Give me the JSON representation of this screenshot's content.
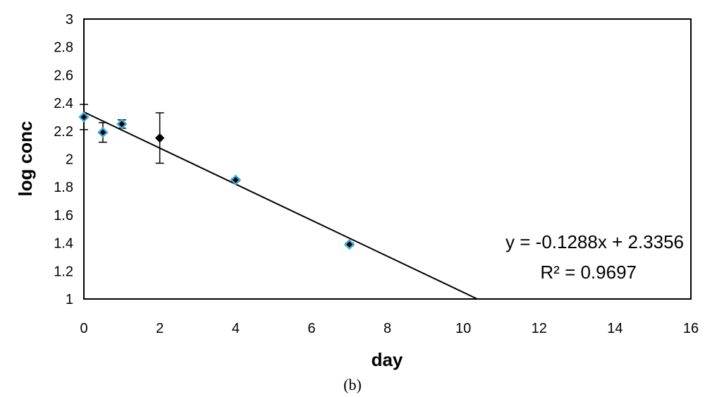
{
  "chart_data": {
    "type": "scatter",
    "xlabel": "day",
    "ylabel": "log conc",
    "xlim": [
      0,
      16
    ],
    "ylim": [
      1,
      3
    ],
    "xticks": [
      "0",
      "2",
      "4",
      "6",
      "8",
      "10",
      "12",
      "14",
      "16"
    ],
    "yticks": [
      "1",
      "1.2",
      "1.4",
      "1.6",
      "1.8",
      "2",
      "2.2",
      "2.4",
      "2.6",
      "2.8",
      "3"
    ],
    "grid": false,
    "legend": false,
    "points": [
      {
        "x": 0,
        "y": 2.3,
        "err": 0.09,
        "marker": "blue-diamond"
      },
      {
        "x": 0.5,
        "y": 2.19,
        "err": 0.07,
        "marker": "blue-diamond"
      },
      {
        "x": 1,
        "y": 2.25,
        "err": 0.03,
        "marker": "blue-diamond"
      },
      {
        "x": 2,
        "y": 2.15,
        "err": 0.18,
        "marker": "black-diamond"
      },
      {
        "x": 4,
        "y": 1.85,
        "err": 0.01,
        "marker": "blue-diamond"
      },
      {
        "x": 7,
        "y": 1.39,
        "err": 0.01,
        "marker": "blue-diamond"
      }
    ],
    "trendline": {
      "slope": -0.1288,
      "intercept": 2.3356
    },
    "equation_text": "y = -0.1288x + 2.3356",
    "r2_text": "R² = 0.9697",
    "caption": "(b)",
    "colors": {
      "marker_fill": "#000000",
      "marker_outline": "#3fa9d6",
      "line": "#000000"
    }
  }
}
